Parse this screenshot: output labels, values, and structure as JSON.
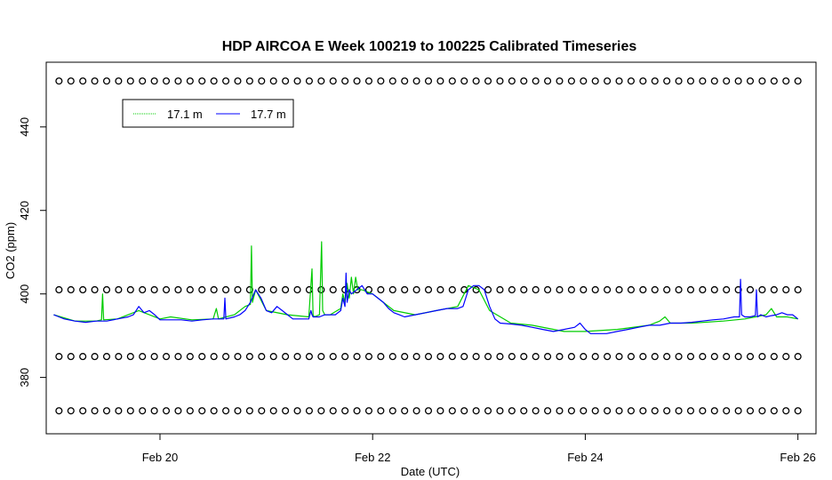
{
  "chart_data": {
    "type": "line",
    "title": "HDP AIRCOA E  Week 100219 to 100225  Calibrated Timeseries",
    "xlabel": "Date (UTC)",
    "ylabel": "CO2 (ppm)",
    "x_unit": "days (Feb 2010)",
    "xlim": [
      18.93,
      26.17
    ],
    "ylim": [
      366.5,
      455.5
    ],
    "x_ticks": [
      {
        "value": 20,
        "label": "Feb 20"
      },
      {
        "value": 22,
        "label": "Feb 22"
      },
      {
        "value": 24,
        "label": "Feb 24"
      },
      {
        "value": 26,
        "label": "Feb 26"
      }
    ],
    "y_ticks": [
      {
        "value": 380,
        "label": "380"
      },
      {
        "value": 400,
        "label": "400"
      },
      {
        "value": 420,
        "label": "420"
      },
      {
        "value": 440,
        "label": "440"
      }
    ],
    "grid": false,
    "legend_position": "top-left",
    "series": [
      {
        "name": "17.1 m",
        "color": "#00cc00",
        "x": [
          19.0,
          19.2,
          19.4,
          19.45,
          19.46,
          19.47,
          19.6,
          19.8,
          19.9,
          20.0,
          20.1,
          20.3,
          20.5,
          20.53,
          20.55,
          20.7,
          20.8,
          20.85,
          20.86,
          20.87,
          20.9,
          21.0,
          21.2,
          21.4,
          21.43,
          21.44,
          21.45,
          21.5,
          21.52,
          21.53,
          21.55,
          21.6,
          21.7,
          21.72,
          21.74,
          21.76,
          21.78,
          21.8,
          21.82,
          21.84,
          21.86,
          21.9,
          22.0,
          22.1,
          22.2,
          22.4,
          22.6,
          22.8,
          22.9,
          23.0,
          23.1,
          23.3,
          23.5,
          23.8,
          24.0,
          24.3,
          24.6,
          24.7,
          24.75,
          24.8,
          25.0,
          25.3,
          25.5,
          25.6,
          25.7,
          25.75,
          25.8,
          25.9,
          26.0
        ],
        "y": [
          395,
          393.5,
          393.5,
          393.8,
          400,
          393.8,
          394,
          396,
          395,
          394,
          394.5,
          393.8,
          394,
          396.5,
          394,
          395,
          397,
          397.5,
          411.5,
          398,
          401,
          396,
          395,
          394.5,
          406,
          395,
          394.5,
          395,
          412.5,
          396,
          395,
          395,
          396.5,
          400,
          398,
          402.5,
          399,
          404,
          400,
          404,
          401,
          401,
          400,
          398,
          396,
          395,
          396,
          397,
          402,
          401,
          396,
          393,
          392.5,
          391,
          391,
          391.5,
          392.5,
          393.5,
          394.5,
          393,
          393,
          393.5,
          394,
          394.5,
          395,
          396.5,
          394.5,
          394.5,
          394
        ]
      },
      {
        "name": "17.7 m",
        "color": "#0000ff",
        "x": [
          19.0,
          19.05,
          19.1,
          19.2,
          19.3,
          19.4,
          19.5,
          19.6,
          19.7,
          19.75,
          19.8,
          19.85,
          19.9,
          19.95,
          20.0,
          20.1,
          20.2,
          20.3,
          20.4,
          20.5,
          20.55,
          20.6,
          20.61,
          20.62,
          20.7,
          20.75,
          20.8,
          20.85,
          20.9,
          20.95,
          21.0,
          21.05,
          21.1,
          21.15,
          21.2,
          21.25,
          21.3,
          21.35,
          21.4,
          21.42,
          21.43,
          21.44,
          21.5,
          21.55,
          21.6,
          21.65,
          21.7,
          21.72,
          21.74,
          21.75,
          21.76,
          21.78,
          21.8,
          21.85,
          21.9,
          21.95,
          22.0,
          22.05,
          22.1,
          22.15,
          22.2,
          22.25,
          22.3,
          22.4,
          22.5,
          22.6,
          22.7,
          22.8,
          22.85,
          22.9,
          22.95,
          23.0,
          23.05,
          23.1,
          23.15,
          23.2,
          23.3,
          23.4,
          23.5,
          23.6,
          23.7,
          23.8,
          23.9,
          23.95,
          24.0,
          24.05,
          24.1,
          24.2,
          24.3,
          24.4,
          24.5,
          24.6,
          24.7,
          24.8,
          24.9,
          25.0,
          25.1,
          25.2,
          25.3,
          25.4,
          25.45,
          25.46,
          25.47,
          25.5,
          25.55,
          25.6,
          25.61,
          25.62,
          25.65,
          25.7,
          25.75,
          25.8,
          25.85,
          25.9,
          25.95,
          26.0
        ],
        "y": [
          395,
          394.5,
          394,
          393.5,
          393.2,
          393.5,
          393.5,
          394,
          394.5,
          395,
          397,
          395.5,
          396,
          395,
          393.8,
          393.8,
          393.8,
          393.5,
          393.8,
          394,
          394,
          394,
          399,
          394,
          394.5,
          395,
          396,
          398,
          401,
          399,
          396,
          395.5,
          397,
          396,
          395,
          394,
          394,
          394,
          394,
          396,
          395,
          394.5,
          394.5,
          395,
          395,
          395,
          396,
          399,
          397,
          405,
          398,
          401,
          400,
          401,
          402,
          400,
          400,
          399,
          398,
          396.5,
          395.5,
          395,
          394.5,
          395,
          395.5,
          396,
          396.5,
          396.5,
          397,
          401,
          402,
          402,
          401,
          397,
          394,
          393,
          392.8,
          392.5,
          392,
          391.5,
          391,
          391.5,
          392,
          393,
          391.5,
          390.5,
          390.5,
          390.5,
          391,
          391.5,
          392,
          392.5,
          392.5,
          393,
          393,
          393.2,
          393.5,
          393.8,
          394,
          394.5,
          394.5,
          403.5,
          395,
          394.5,
          394.5,
          394.8,
          401,
          394.5,
          395,
          394.5,
          394.8,
          395,
          395.5,
          395,
          395,
          394
        ]
      }
    ],
    "reference_markers": {
      "symbol": "circle",
      "color": "#000000",
      "levels": [
        451,
        401,
        385,
        372
      ],
      "x_start": 19.05,
      "x_end": 26.0,
      "count_per_level": 63
    }
  }
}
